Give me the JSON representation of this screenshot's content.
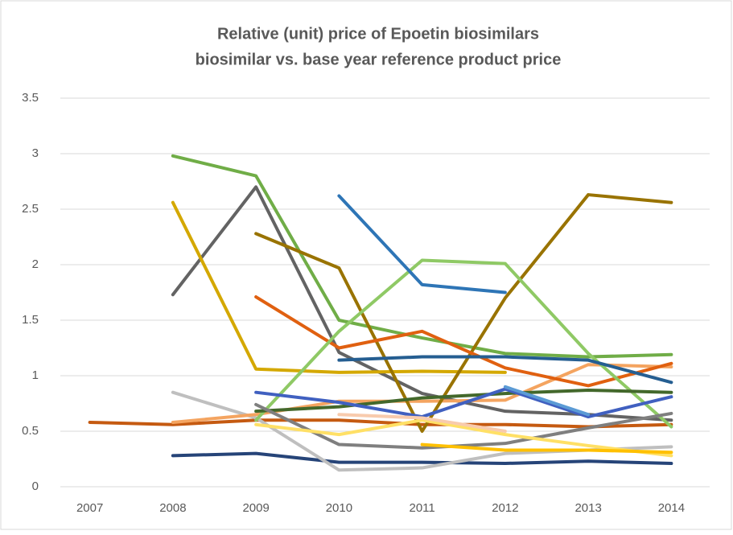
{
  "chart_data": {
    "type": "line",
    "title": "Relative (unit) price of Epoetin biosimilars",
    "subtitle": "biosimilar vs. base year reference product price",
    "categories": [
      "2007",
      "2008",
      "2009",
      "2010",
      "2011",
      "2012",
      "2013",
      "2014"
    ],
    "ylim": [
      0,
      3.5
    ],
    "yticks": [
      0,
      0.5,
      1,
      1.5,
      2,
      2.5,
      3,
      3.5
    ],
    "grid": true,
    "series": [
      {
        "color": "#c55a11",
        "values": [
          0.58,
          0.56,
          0.6,
          0.6,
          0.56,
          0.56,
          0.54,
          0.56
        ]
      },
      {
        "color": "#264478",
        "values": [
          null,
          0.28,
          0.3,
          0.22,
          0.22,
          0.21,
          0.23,
          0.21
        ]
      },
      {
        "color": "#70ad47",
        "values": [
          null,
          2.98,
          2.8,
          1.5,
          1.34,
          1.2,
          1.17,
          1.19
        ]
      },
      {
        "color": "#636363",
        "values": [
          null,
          1.73,
          2.7,
          1.21,
          0.84,
          0.68,
          0.65,
          0.6
        ]
      },
      {
        "color": "#d4a800",
        "values": [
          null,
          2.56,
          1.06,
          1.03,
          1.04,
          1.03,
          null,
          null
        ]
      },
      {
        "color": "#bfbfbf",
        "values": [
          null,
          0.85,
          0.62,
          0.15,
          0.17,
          0.3,
          0.33,
          0.36
        ]
      },
      {
        "color": "#f4a460",
        "values": [
          null,
          0.58,
          0.65,
          0.77,
          0.77,
          0.78,
          1.1,
          1.08
        ]
      },
      {
        "color": "#997300",
        "values": [
          null,
          null,
          2.28,
          1.97,
          0.5,
          1.7,
          2.63,
          2.56
        ]
      },
      {
        "color": "#e06010",
        "values": [
          null,
          null,
          1.71,
          1.25,
          1.4,
          1.07,
          0.91,
          1.11
        ]
      },
      {
        "color": "#8fc965",
        "values": [
          null,
          null,
          0.6,
          1.4,
          2.04,
          2.01,
          1.2,
          0.54
        ]
      },
      {
        "color": "#2e75b6",
        "values": [
          null,
          null,
          null,
          2.62,
          1.82,
          1.75,
          null,
          null
        ]
      },
      {
        "color": "#255e91",
        "values": [
          null,
          null,
          null,
          1.14,
          1.17,
          1.17,
          1.14,
          0.94
        ]
      },
      {
        "color": "#43682b",
        "values": [
          null,
          null,
          0.68,
          0.72,
          0.8,
          0.84,
          0.87,
          0.85
        ]
      },
      {
        "color": "#4060c0",
        "values": [
          null,
          null,
          0.85,
          0.76,
          0.63,
          0.88,
          0.63,
          0.81
        ]
      },
      {
        "color": "#7f7f7f",
        "values": [
          null,
          null,
          0.74,
          0.38,
          0.35,
          0.39,
          0.53,
          0.66
        ]
      },
      {
        "color": "#ffe066",
        "values": [
          null,
          null,
          0.56,
          0.47,
          0.6,
          0.47,
          0.37,
          0.28
        ]
      },
      {
        "color": "#f8cbad",
        "values": [
          null,
          null,
          null,
          0.65,
          0.62,
          0.5,
          null,
          null
        ]
      },
      {
        "color": "#ffc000",
        "values": [
          null,
          null,
          null,
          null,
          0.38,
          0.33,
          0.33,
          0.31
        ]
      },
      {
        "color": "#5b9bd5",
        "values": [
          null,
          null,
          null,
          null,
          null,
          0.9,
          0.65,
          null
        ]
      }
    ]
  }
}
